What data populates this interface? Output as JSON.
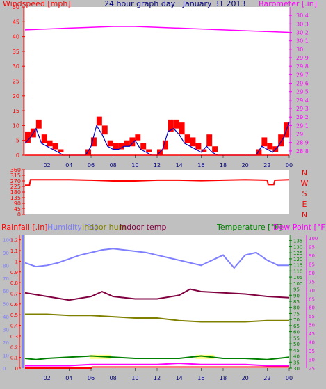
{
  "colors": {
    "background": "#c0c0c0",
    "plot_bg": "#ffffff",
    "wind_avg": "#0000c0",
    "wind_gust": "#ff0000",
    "barometer": "#ff00ff",
    "direction": "#ff0000",
    "rainfall": "#ff0000",
    "humidity": "#8080ff",
    "indoor_hum": "#808000",
    "indoor_temp": "#800040",
    "temperature": "#008000",
    "dew_point": "#ff00ff",
    "x_tick_labels": "#000080",
    "highlight": "#ffff80"
  },
  "chart_data": [
    {
      "type": "line",
      "title": "24 hour graph day : January 31 2013",
      "left_axis_label": "Windspeed [mph]",
      "right_axis_label": "Barometer [.in]",
      "x_ticks": [
        "02",
        "04",
        "06",
        "08",
        "10",
        "12",
        "14",
        "16",
        "18",
        "20",
        "22",
        "00"
      ],
      "left_ticks": [
        "0",
        "5",
        "10",
        "15",
        "20",
        "25",
        "30",
        "35",
        "40",
        "45",
        "50"
      ],
      "right_ticks": [
        "28.8",
        "28.9",
        "29",
        "29.1",
        "29.2",
        "29.3",
        "29.4",
        "29.5",
        "29.6",
        "29.7",
        "29.8",
        "29.9",
        "30",
        "30.1",
        "30.2",
        "30.3",
        "30.4"
      ],
      "ylim_left": [
        0,
        50
      ],
      "ylim_right": [
        28.75,
        30.5
      ],
      "series": [
        {
          "name": "Windspeed",
          "axis": "left",
          "x": [
            0,
            0.5,
            1,
            1.5,
            2,
            2.5,
            3,
            3.5,
            4,
            4.5,
            5,
            5.5,
            6,
            6.5,
            7,
            7.5,
            8,
            8.5,
            9,
            9.5,
            10,
            10.5,
            11,
            11.5,
            12,
            12.5,
            13,
            13.5,
            14,
            14.5,
            15,
            15.5,
            16,
            16.5,
            17,
            17.5,
            18,
            18.5,
            19,
            19.5,
            20,
            20.5,
            21,
            21.5,
            22,
            22.5,
            23,
            23.5,
            24
          ],
          "values": [
            4,
            6,
            9,
            4,
            3,
            2,
            1,
            0,
            0,
            0,
            0,
            0,
            3,
            10,
            7,
            3,
            2,
            2,
            3,
            3,
            5,
            2,
            1,
            0,
            0,
            2,
            8,
            9,
            7,
            4,
            3,
            2,
            1,
            3,
            1,
            0,
            0,
            0,
            0,
            0,
            0,
            0,
            0,
            3,
            2,
            1,
            3,
            6,
            11
          ]
        },
        {
          "name": "Gust",
          "axis": "left",
          "x": [
            0,
            0.5,
            1,
            1.5,
            2,
            2.5,
            3,
            3.5,
            4,
            4.5,
            5,
            5.5,
            6,
            6.5,
            7,
            7.5,
            8,
            8.5,
            9,
            9.5,
            10,
            10.5,
            11,
            11.5,
            12,
            12.5,
            13,
            13.5,
            14,
            14.5,
            15,
            15.5,
            16,
            16.5,
            17,
            17.5,
            18,
            18.5,
            19,
            19.5,
            20,
            20.5,
            21,
            21.5,
            22,
            22.5,
            23,
            23.5,
            24
          ],
          "values": [
            8,
            9,
            12,
            7,
            5,
            4,
            2,
            0,
            0,
            0,
            0,
            2,
            6,
            13,
            10,
            5,
            4,
            4,
            5,
            6,
            7,
            4,
            2,
            0,
            2,
            5,
            12,
            12,
            11,
            7,
            6,
            4,
            2,
            7,
            3,
            0,
            0,
            0,
            0,
            0,
            0,
            0,
            2,
            6,
            4,
            3,
            7,
            11,
            15
          ]
        },
        {
          "name": "Barometer",
          "axis": "right",
          "x": [
            0,
            2,
            4,
            6,
            8,
            10,
            12,
            14,
            16,
            18,
            20,
            22,
            24
          ],
          "values": [
            30.23,
            30.24,
            30.25,
            30.26,
            30.27,
            30.27,
            30.26,
            30.25,
            30.24,
            30.23,
            30.22,
            30.21,
            30.2
          ]
        }
      ]
    },
    {
      "type": "line",
      "right_axis_label": [
        "N",
        "W",
        "S",
        "E",
        "N"
      ],
      "left_ticks": [
        "0",
        "45",
        "90",
        "135",
        "180",
        "225",
        "270",
        "315",
        "360"
      ],
      "ylim": [
        0,
        360
      ],
      "x_ticks": [
        "02",
        "04",
        "06",
        "08",
        "10",
        "12",
        "14",
        "16",
        "18",
        "20",
        "22",
        "00"
      ],
      "series": [
        {
          "name": "Wind direction",
          "x": [
            0,
            0.4,
            0.5,
            2,
            4,
            6,
            8,
            10,
            12,
            14,
            16,
            18,
            20,
            22,
            22.1,
            22.6,
            22.7,
            24
          ],
          "values": [
            235,
            235,
            280,
            280,
            280,
            276,
            270,
            270,
            276,
            276,
            272,
            276,
            280,
            276,
            240,
            240,
            276,
            280
          ]
        }
      ]
    },
    {
      "type": "line",
      "labels": [
        "Rainfall [.in]",
        "Humidity [%]",
        "Indoor hum",
        "Indoor temp",
        "Temperature [°F]",
        "Dew Point [°F]"
      ],
      "rain_ticks": [
        "0",
        "0.1",
        "0.2",
        "0.3",
        "0.4",
        "0.5",
        "0.6",
        "0.7",
        "0.8",
        "0.9",
        "1",
        "1.1",
        "1.2"
      ],
      "humidity_ticks": [
        "0",
        "10",
        "20",
        "30",
        "40",
        "50",
        "60",
        "70",
        "80",
        "90",
        "100"
      ],
      "temp_ticks": [
        "30",
        "35",
        "40",
        "45",
        "50",
        "55",
        "60",
        "65",
        "70",
        "75",
        "80",
        "85",
        "90",
        "95",
        "100",
        "105",
        "110",
        "115",
        "120",
        "125",
        "130",
        "135"
      ],
      "dew_ticks": [
        "25",
        "30",
        "35",
        "40",
        "45",
        "50",
        "55",
        "60",
        "65",
        "70",
        "75",
        "80",
        "85",
        "90",
        "95",
        "100"
      ],
      "x_ticks": [
        "02",
        "04",
        "06",
        "08",
        "10",
        "12",
        "14",
        "16",
        "18",
        "20",
        "22",
        "00"
      ],
      "series": [
        {
          "name": "Humidity",
          "axis": "humidity",
          "x": [
            0,
            1,
            2,
            3,
            4,
            5,
            6,
            7,
            8,
            9,
            10,
            11,
            12,
            13,
            14,
            15,
            16,
            17,
            18,
            19,
            20,
            21,
            22,
            23,
            24
          ],
          "values": [
            82,
            79,
            80,
            82,
            85,
            88,
            90,
            92,
            93,
            92,
            91,
            90,
            88,
            86,
            84,
            82,
            80,
            84,
            88,
            78,
            88,
            90,
            84,
            80,
            80
          ]
        },
        {
          "name": "Indoor temp",
          "axis": "temp",
          "x": [
            0,
            2,
            4,
            6,
            7,
            8,
            10,
            12,
            14,
            15,
            16,
            18,
            20,
            22,
            24
          ],
          "values": [
            92,
            89,
            86,
            89,
            93,
            89,
            87,
            87,
            90,
            95,
            93,
            92,
            91,
            89,
            88
          ]
        },
        {
          "name": "Indoor hum",
          "axis": "humidity",
          "x": [
            0,
            2,
            4,
            6,
            8,
            10,
            12,
            14,
            16,
            18,
            20,
            22,
            24
          ],
          "values": [
            42,
            42,
            41,
            41,
            40,
            39,
            39,
            37,
            36,
            36,
            36,
            37,
            37
          ]
        },
        {
          "name": "Temperature",
          "axis": "temp",
          "x": [
            0,
            1,
            2,
            4,
            6,
            8,
            10,
            12,
            14,
            16,
            18,
            20,
            22,
            24
          ],
          "values": [
            38,
            37,
            38,
            39,
            40,
            39,
            38,
            38,
            38,
            40,
            38,
            38,
            37,
            39
          ]
        },
        {
          "name": "Dew Point",
          "axis": "temp",
          "x": [
            0,
            2,
            4,
            6,
            8,
            10,
            12,
            14,
            16,
            18,
            20,
            22,
            24
          ],
          "values": [
            32,
            32,
            32,
            33,
            33,
            33,
            33,
            34,
            33,
            33,
            33,
            32,
            32
          ]
        },
        {
          "name": "Rainfall",
          "axis": "rain",
          "x": [
            0,
            6,
            6.1,
            24
          ],
          "values": [
            0,
            0,
            0.01,
            0.01
          ]
        }
      ]
    }
  ]
}
